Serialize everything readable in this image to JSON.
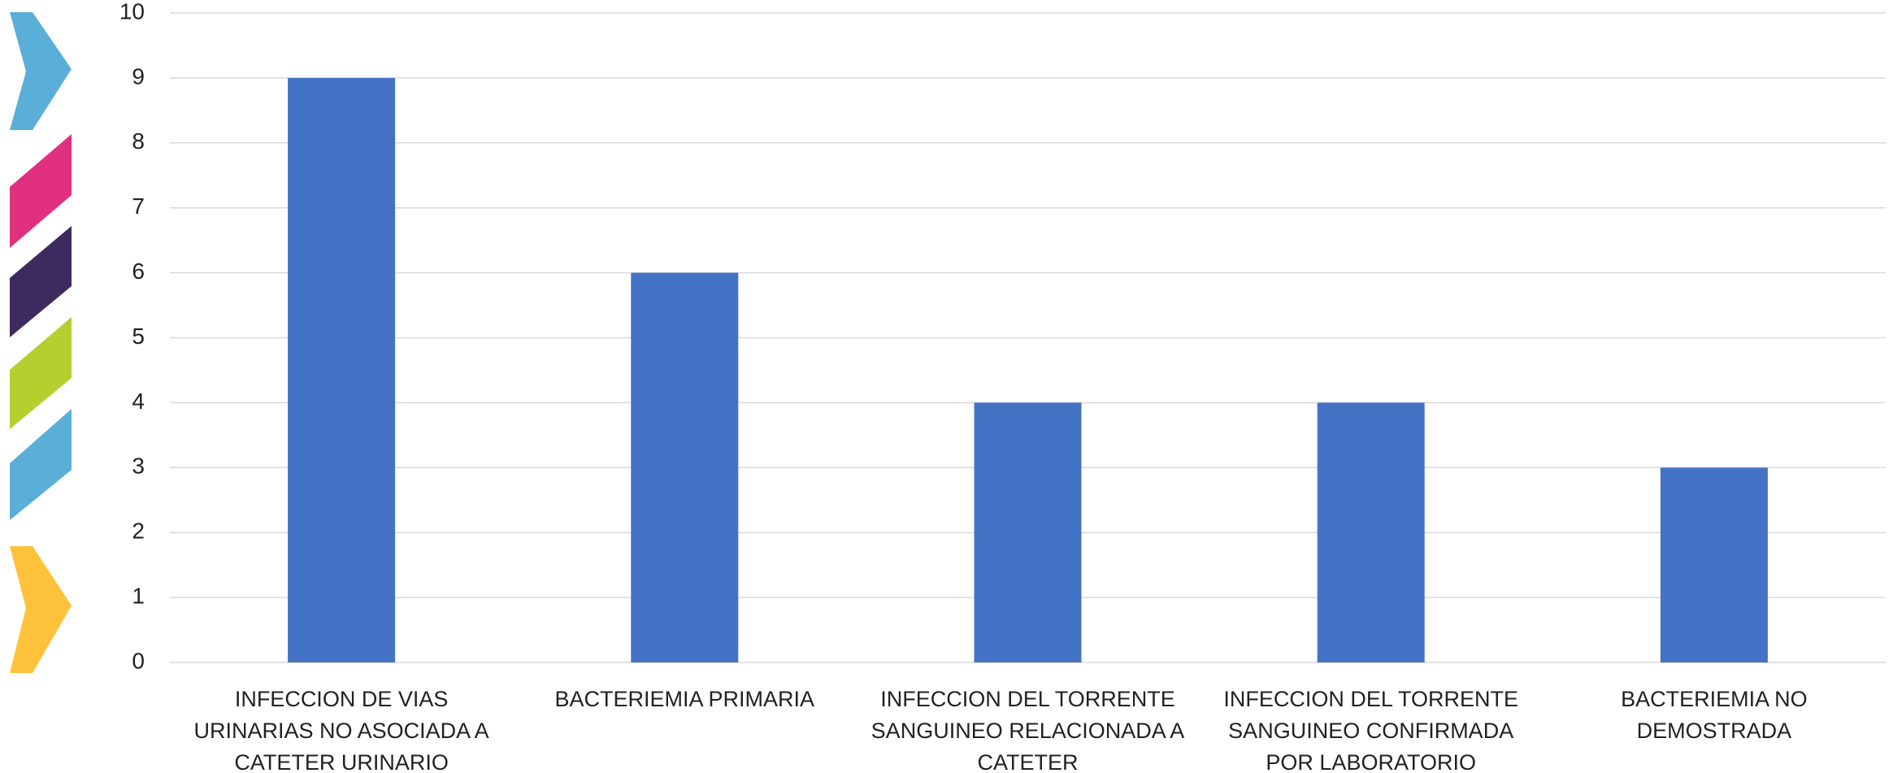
{
  "chart_data": {
    "type": "bar",
    "categories": [
      "INFECCION DE VIAS URINARIAS NO ASOCIADA A CATETER URINARIO",
      "BACTERIEMIA PRIMARIA",
      "INFECCION DEL TORRENTE SANGUINEO RELACIONADA A CATETER",
      "INFECCION DEL TORRENTE SANGUINEO CONFIRMADA POR LABORATORIO",
      "BACTERIEMIA NO DEMOSTRADA"
    ],
    "values": [
      9,
      6,
      4,
      4,
      3
    ],
    "color": "#4472c4",
    "ylim": [
      0,
      10
    ],
    "yticks": [
      0,
      1,
      2,
      3,
      4,
      5,
      6,
      7,
      8,
      9,
      10
    ],
    "grid": true
  }
}
